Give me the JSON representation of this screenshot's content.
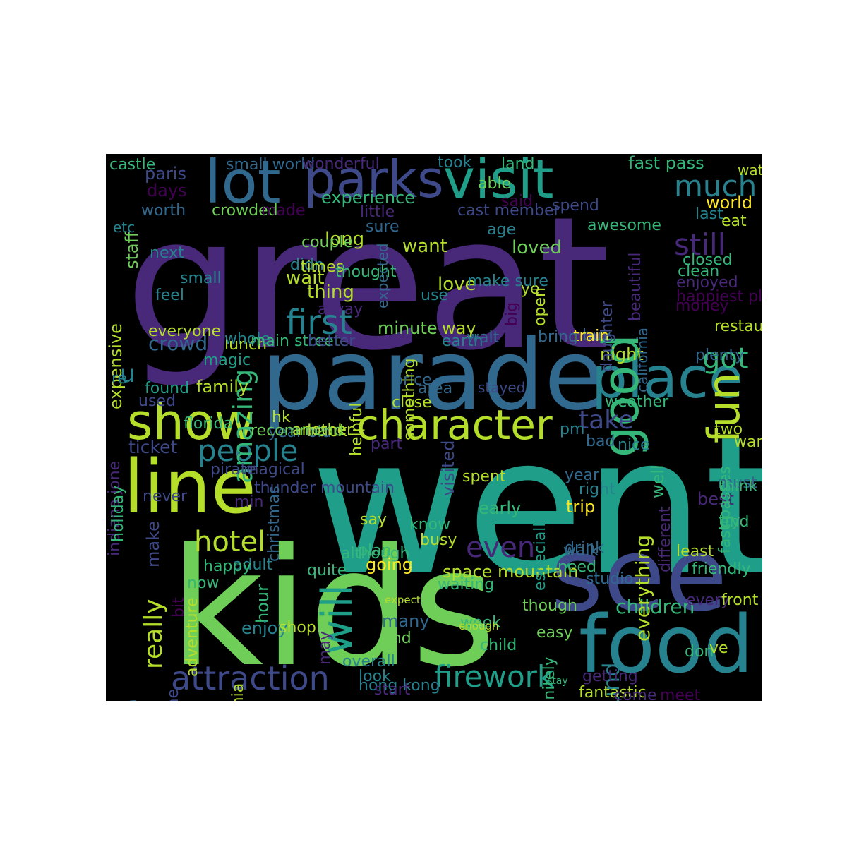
{
  "palette": {
    "background": "#000000",
    "page_background": "#ffffff",
    "viridis": [
      "#440154",
      "#482878",
      "#3e4989",
      "#31688e",
      "#26828e",
      "#1f9e89",
      "#35b779",
      "#6ece58",
      "#b5de2b",
      "#fde725"
    ]
  },
  "words": [
    {
      "t": "great",
      "c": "#482878",
      "s": 0
    },
    {
      "t": "went",
      "c": "#1f9e89",
      "s": 0
    },
    {
      "t": "kids",
      "c": "#6ece58",
      "s": 0
    },
    {
      "t": "parade",
      "c": "#31688e",
      "s": 0
    },
    {
      "t": "see",
      "c": "#3e4989",
      "s": 0
    },
    {
      "t": "line",
      "c": "#b5de2b",
      "s": 0
    },
    {
      "t": "food",
      "c": "#26828e",
      "s": 0
    },
    {
      "t": "lot",
      "c": "#31688e",
      "s": 0
    },
    {
      "t": "parks",
      "c": "#3e4989",
      "s": 0
    },
    {
      "t": "visit",
      "c": "#1f9e89",
      "s": 0
    },
    {
      "t": "place",
      "c": "#26828e",
      "s": 0
    },
    {
      "t": "show",
      "c": "#b5de2b",
      "s": 0
    },
    {
      "t": "character",
      "c": "#b5de2b",
      "s": 0
    },
    {
      "t": "queue",
      "c": "#31688e",
      "s": 1
    },
    {
      "t": "fun",
      "c": "#b5de2b",
      "s": 1
    },
    {
      "t": "good",
      "c": "#35b779",
      "s": 1
    },
    {
      "t": "attraction",
      "c": "#3e4989",
      "s": 0
    },
    {
      "t": "firework",
      "c": "#1f9e89",
      "s": 0
    },
    {
      "t": "people",
      "c": "#26828e",
      "s": 0
    },
    {
      "t": "hotel",
      "c": "#b5de2b",
      "s": 0
    },
    {
      "t": "will",
      "c": "#1f9e89",
      "s": 1
    },
    {
      "t": "even",
      "c": "#482878",
      "s": 0
    },
    {
      "t": "first",
      "c": "#26828e",
      "s": 0
    },
    {
      "t": "much",
      "c": "#26828e",
      "s": 0
    },
    {
      "t": "still",
      "c": "#482878",
      "s": 0
    },
    {
      "t": "take",
      "c": "#3e4989",
      "s": 0
    },
    {
      "t": "got",
      "c": "#35b779",
      "s": 0
    },
    {
      "t": "really",
      "c": "#b5de2b",
      "s": 1
    },
    {
      "t": "amazing",
      "c": "#35b779",
      "s": 1
    },
    {
      "t": "around",
      "c": "#26828e",
      "s": 1
    },
    {
      "t": "children",
      "c": "#35b779",
      "s": 0
    },
    {
      "t": "everything",
      "c": "#b5de2b",
      "s": 1
    },
    {
      "t": "u",
      "c": "#26828e",
      "s": 0
    },
    {
      "t": "crowd",
      "c": "#31688e",
      "s": 0
    },
    {
      "t": "ticket",
      "c": "#3e4989",
      "s": 0
    },
    {
      "t": "family",
      "c": "#b5de2b",
      "s": 0
    },
    {
      "t": "long",
      "c": "#b5de2b",
      "s": 0
    },
    {
      "t": "wait",
      "c": "#b5de2b",
      "s": 0
    },
    {
      "t": "thing",
      "c": "#b5de2b",
      "s": 0
    },
    {
      "t": "love",
      "c": "#b5de2b",
      "s": 0
    },
    {
      "t": "loved",
      "c": "#6ece58",
      "s": 0
    },
    {
      "t": "want",
      "c": "#b5de2b",
      "s": 0
    },
    {
      "t": "experience",
      "c": "#35b779",
      "s": 0
    },
    {
      "t": "fast pass",
      "c": "#35b779",
      "s": 0
    },
    {
      "t": "paris",
      "c": "#3e4989",
      "s": 0
    },
    {
      "t": "days",
      "c": "#440154",
      "s": 0
    },
    {
      "t": "staff",
      "c": "#6ece58",
      "s": 1
    },
    {
      "t": "expensive",
      "c": "#b5de2b",
      "s": 1
    },
    {
      "t": "minute",
      "c": "#6ece58",
      "s": 0
    },
    {
      "t": "way",
      "c": "#b5de2b",
      "s": 0
    },
    {
      "t": "night",
      "c": "#b5de2b",
      "s": 0
    },
    {
      "t": "back",
      "c": "#b5de2b",
      "s": 0
    },
    {
      "t": "going",
      "c": "#fde725",
      "s": 0
    },
    {
      "t": "adult",
      "c": "#26828e",
      "s": 0
    },
    {
      "t": "hour",
      "c": "#35b779",
      "s": 1
    },
    {
      "t": "enjoy",
      "c": "#26828e",
      "s": 0
    },
    {
      "t": "many",
      "c": "#31688e",
      "s": 0
    },
    {
      "t": "make",
      "c": "#3e4989",
      "s": 1
    },
    {
      "t": "early",
      "c": "#35b779",
      "s": 0
    },
    {
      "t": "trip",
      "c": "#fde725",
      "s": 0
    },
    {
      "t": "best",
      "c": "#482878",
      "s": 0
    },
    {
      "t": "well",
      "c": "#35b779",
      "s": 1
    },
    {
      "t": "world",
      "c": "#fde725",
      "s": 0
    },
    {
      "t": "visited",
      "c": "#3e4989",
      "s": 1
    },
    {
      "t": "space mountain",
      "c": "#b5de2b",
      "s": 0
    },
    {
      "t": "hong kong",
      "c": "#26828e",
      "s": 0
    },
    {
      "t": "pirate",
      "c": "#3e4989",
      "s": 0
    },
    {
      "t": "magical",
      "c": "#3e4989",
      "s": 0
    },
    {
      "t": "year old",
      "c": "#31688e",
      "s": 0
    },
    {
      "t": "florida",
      "c": "#35b779",
      "s": 0
    },
    {
      "t": "found",
      "c": "#1f9e89",
      "s": 0
    },
    {
      "t": "used",
      "c": "#3e4989",
      "s": 0
    },
    {
      "t": "magic",
      "c": "#1f9e89",
      "s": 0
    },
    {
      "t": "lunch",
      "c": "#b5de2b",
      "s": 0
    },
    {
      "t": "whole",
      "c": "#26828e",
      "s": 0
    },
    {
      "t": "main street",
      "c": "#35b779",
      "s": 0
    },
    {
      "t": "better",
      "c": "#3e4989",
      "s": 0
    },
    {
      "t": "earth",
      "c": "#26828e",
      "s": 0
    },
    {
      "t": "walt",
      "c": "#31688e",
      "s": 0
    },
    {
      "t": "everyone",
      "c": "#b5de2b",
      "s": 0
    },
    {
      "t": "feel",
      "c": "#26828e",
      "s": 0
    },
    {
      "t": "small",
      "c": "#26828e",
      "s": 0
    },
    {
      "t": "next",
      "c": "#26828e",
      "s": 0
    },
    {
      "t": "worth",
      "c": "#31688e",
      "s": 0
    },
    {
      "t": "crowded",
      "c": "#6ece58",
      "s": 0
    },
    {
      "t": "made",
      "c": "#440154",
      "s": 0
    },
    {
      "t": "little",
      "c": "#482878",
      "s": 0
    },
    {
      "t": "sure",
      "c": "#31688e",
      "s": 0
    },
    {
      "t": "couple",
      "c": "#6ece58",
      "s": 0
    },
    {
      "t": "didn",
      "c": "#26828e",
      "s": 0
    },
    {
      "t": "times",
      "c": "#b5de2b",
      "s": 0
    },
    {
      "t": "thought",
      "c": "#35b779",
      "s": 0
    },
    {
      "t": "use",
      "c": "#26828e",
      "s": 0
    },
    {
      "t": "alway",
      "c": "#482878",
      "s": 0
    },
    {
      "t": "cast member",
      "c": "#3e4989",
      "s": 0
    },
    {
      "t": "age",
      "c": "#26828e",
      "s": 0
    },
    {
      "t": "spend",
      "c": "#3e4989",
      "s": 0
    },
    {
      "t": "awesome",
      "c": "#35b779",
      "s": 0
    },
    {
      "t": "last",
      "c": "#26828e",
      "s": 0
    },
    {
      "t": "eat",
      "c": "#b5de2b",
      "s": 0
    },
    {
      "t": "closed",
      "c": "#35b779",
      "s": 0
    },
    {
      "t": "clean",
      "c": "#35b779",
      "s": 0
    },
    {
      "t": "enjoyed",
      "c": "#482878",
      "s": 0
    },
    {
      "t": "happiest place",
      "c": "#440154",
      "s": 0
    },
    {
      "t": "money",
      "c": "#440154",
      "s": 0
    },
    {
      "t": "restaurant",
      "c": "#b5de2b",
      "s": 0
    },
    {
      "t": "plenty",
      "c": "#31688e",
      "s": 0
    },
    {
      "t": "buy",
      "c": "#31688e",
      "s": 0
    },
    {
      "t": "train",
      "c": "#fde725",
      "s": 0
    },
    {
      "t": "bring",
      "c": "#31688e",
      "s": 0
    },
    {
      "t": "ye",
      "c": "#b5de2b",
      "s": 0
    },
    {
      "t": "open",
      "c": "#b5de2b",
      "s": 1
    },
    {
      "t": "beautiful",
      "c": "#482878",
      "s": 1
    },
    {
      "t": "california",
      "c": "#31688e",
      "s": 1
    },
    {
      "t": "daughter",
      "c": "#3e4989",
      "s": 1
    },
    {
      "t": "big",
      "c": "#440154",
      "s": 1
    },
    {
      "t": "make sure",
      "c": "#26828e",
      "s": 0
    },
    {
      "t": "castle",
      "c": "#35b779",
      "s": 0
    },
    {
      "t": "small world",
      "c": "#31688e",
      "s": 0
    },
    {
      "t": "wonderful",
      "c": "#482878",
      "s": 0
    },
    {
      "t": "took",
      "c": "#26828e",
      "s": 0
    },
    {
      "t": "land",
      "c": "#35b779",
      "s": 0
    },
    {
      "t": "able",
      "c": "#6ece58",
      "s": 0
    },
    {
      "t": "said",
      "c": "#440154",
      "s": 0
    },
    {
      "t": "watch",
      "c": "#b5de2b",
      "s": 0
    },
    {
      "t": "expected",
      "c": "#31688e",
      "s": 1
    },
    {
      "t": "etc",
      "c": "#26828e",
      "s": 0
    },
    {
      "t": "re",
      "c": "#26828e",
      "s": 0
    },
    {
      "t": "area",
      "c": "#31688e",
      "s": 0
    },
    {
      "t": "price",
      "c": "#31688e",
      "s": 0
    },
    {
      "t": "close",
      "c": "#b5de2b",
      "s": 0
    },
    {
      "t": "something",
      "c": "#b5de2b",
      "s": 1
    },
    {
      "t": "helpful",
      "c": "#b5de2b",
      "s": 1
    },
    {
      "t": "stayed",
      "c": "#3e4989",
      "s": 0
    },
    {
      "t": "weather",
      "c": "#35b779",
      "s": 0
    },
    {
      "t": "hk",
      "c": "#b5de2b",
      "s": 0
    },
    {
      "t": "another",
      "c": "#b5de2b",
      "s": 0
    },
    {
      "t": "recommend",
      "c": "#6ece58",
      "s": 0
    },
    {
      "t": "thunder mountain",
      "c": "#3e4989",
      "s": 0
    },
    {
      "t": "part",
      "c": "#482878",
      "s": 0
    },
    {
      "t": "pm",
      "c": "#26828e",
      "s": 0
    },
    {
      "t": "bad",
      "c": "#31688e",
      "s": 0
    },
    {
      "t": "nice",
      "c": "#26828e",
      "s": 0
    },
    {
      "t": "two",
      "c": "#b5de2b",
      "s": 0
    },
    {
      "t": "wanted",
      "c": "#b5de2b",
      "s": 0
    },
    {
      "t": "indiana jone",
      "c": "#482878",
      "s": 1
    },
    {
      "t": "holiday",
      "c": "#35b779",
      "s": 1
    },
    {
      "t": "never",
      "c": "#3e4989",
      "s": 0
    },
    {
      "t": "christmas",
      "c": "#31688e",
      "s": 1
    },
    {
      "t": "min",
      "c": "#482878",
      "s": 0
    },
    {
      "t": "spent",
      "c": "#b5de2b",
      "s": 0
    },
    {
      "t": "year",
      "c": "#31688e",
      "s": 0
    },
    {
      "t": "right",
      "c": "#26828e",
      "s": 0
    },
    {
      "t": "especially",
      "c": "#1f9e89",
      "s": 1
    },
    {
      "t": "different",
      "c": "#482878",
      "s": 1
    },
    {
      "t": "fast passes",
      "c": "#35b779",
      "s": 1
    },
    {
      "t": "must",
      "c": "#31688e",
      "s": 0
    },
    {
      "t": "end",
      "c": "#35b779",
      "s": 0
    },
    {
      "t": "think",
      "c": "#35b779",
      "s": 0
    },
    {
      "t": "try",
      "c": "#35b779",
      "s": 0
    },
    {
      "t": "say",
      "c": "#b5de2b",
      "s": 0
    },
    {
      "t": "know",
      "c": "#35b779",
      "s": 0
    },
    {
      "t": "busy",
      "c": "#b5de2b",
      "s": 0
    },
    {
      "t": "drink",
      "c": "#31688e",
      "s": 0
    },
    {
      "t": "need",
      "c": "#35b779",
      "s": 0
    },
    {
      "t": "walk",
      "c": "#31688e",
      "s": 0
    },
    {
      "t": "least",
      "c": "#b5de2b",
      "s": 0
    },
    {
      "t": "friendly",
      "c": "#35b779",
      "s": 0
    },
    {
      "t": "although",
      "c": "#35b779",
      "s": 0
    },
    {
      "t": "plan",
      "c": "#35b779",
      "s": 0
    },
    {
      "t": "quite",
      "c": "#35b779",
      "s": 0
    },
    {
      "t": "happy",
      "c": "#35b779",
      "s": 0
    },
    {
      "t": "now",
      "c": "#35b779",
      "s": 0
    },
    {
      "t": "adventure",
      "c": "#b5de2b",
      "s": 1
    },
    {
      "t": "california",
      "c": "#b5de2b",
      "s": 1
    },
    {
      "t": "theme",
      "c": "#3e4989",
      "s": 1
    },
    {
      "t": "bit",
      "c": "#440154",
      "s": 1
    },
    {
      "t": "shop",
      "c": "#b5de2b",
      "s": 0
    },
    {
      "t": "may",
      "c": "#482878",
      "s": 1
    },
    {
      "t": "waiting",
      "c": "#35b779",
      "s": 0
    },
    {
      "t": "week",
      "c": "#35b779",
      "s": 0
    },
    {
      "t": "though",
      "c": "#6ece58",
      "s": 0
    },
    {
      "t": "studio",
      "c": "#31688e",
      "s": 0
    },
    {
      "t": "every",
      "c": "#482878",
      "s": 0
    },
    {
      "t": "front",
      "c": "#b5de2b",
      "s": 0
    },
    {
      "t": "expect",
      "c": "#b5de2b",
      "s": 0
    },
    {
      "t": "enough",
      "c": "#b5de2b",
      "s": 0
    },
    {
      "t": "find",
      "c": "#6ece58",
      "s": 0
    },
    {
      "t": "child",
      "c": "#35b779",
      "s": 0
    },
    {
      "t": "easy",
      "c": "#6ece58",
      "s": 0
    },
    {
      "t": "definitely",
      "c": "#35b779",
      "s": 1
    },
    {
      "t": "don",
      "c": "#35b779",
      "s": 0
    },
    {
      "t": "ve",
      "c": "#b5de2b",
      "s": 0
    },
    {
      "t": "overall",
      "c": "#26828e",
      "s": 0
    },
    {
      "t": "start",
      "c": "#482878",
      "s": 0
    },
    {
      "t": "look",
      "c": "#26828e",
      "s": 0
    },
    {
      "t": "stay",
      "c": "#35b779",
      "s": 0
    },
    {
      "t": "getting",
      "c": "#482878",
      "s": 0
    },
    {
      "t": "fantastic",
      "c": "#b5de2b",
      "s": 0
    },
    {
      "t": "come",
      "c": "#482878",
      "s": 0
    },
    {
      "t": "meet",
      "c": "#440154",
      "s": 0
    }
  ]
}
